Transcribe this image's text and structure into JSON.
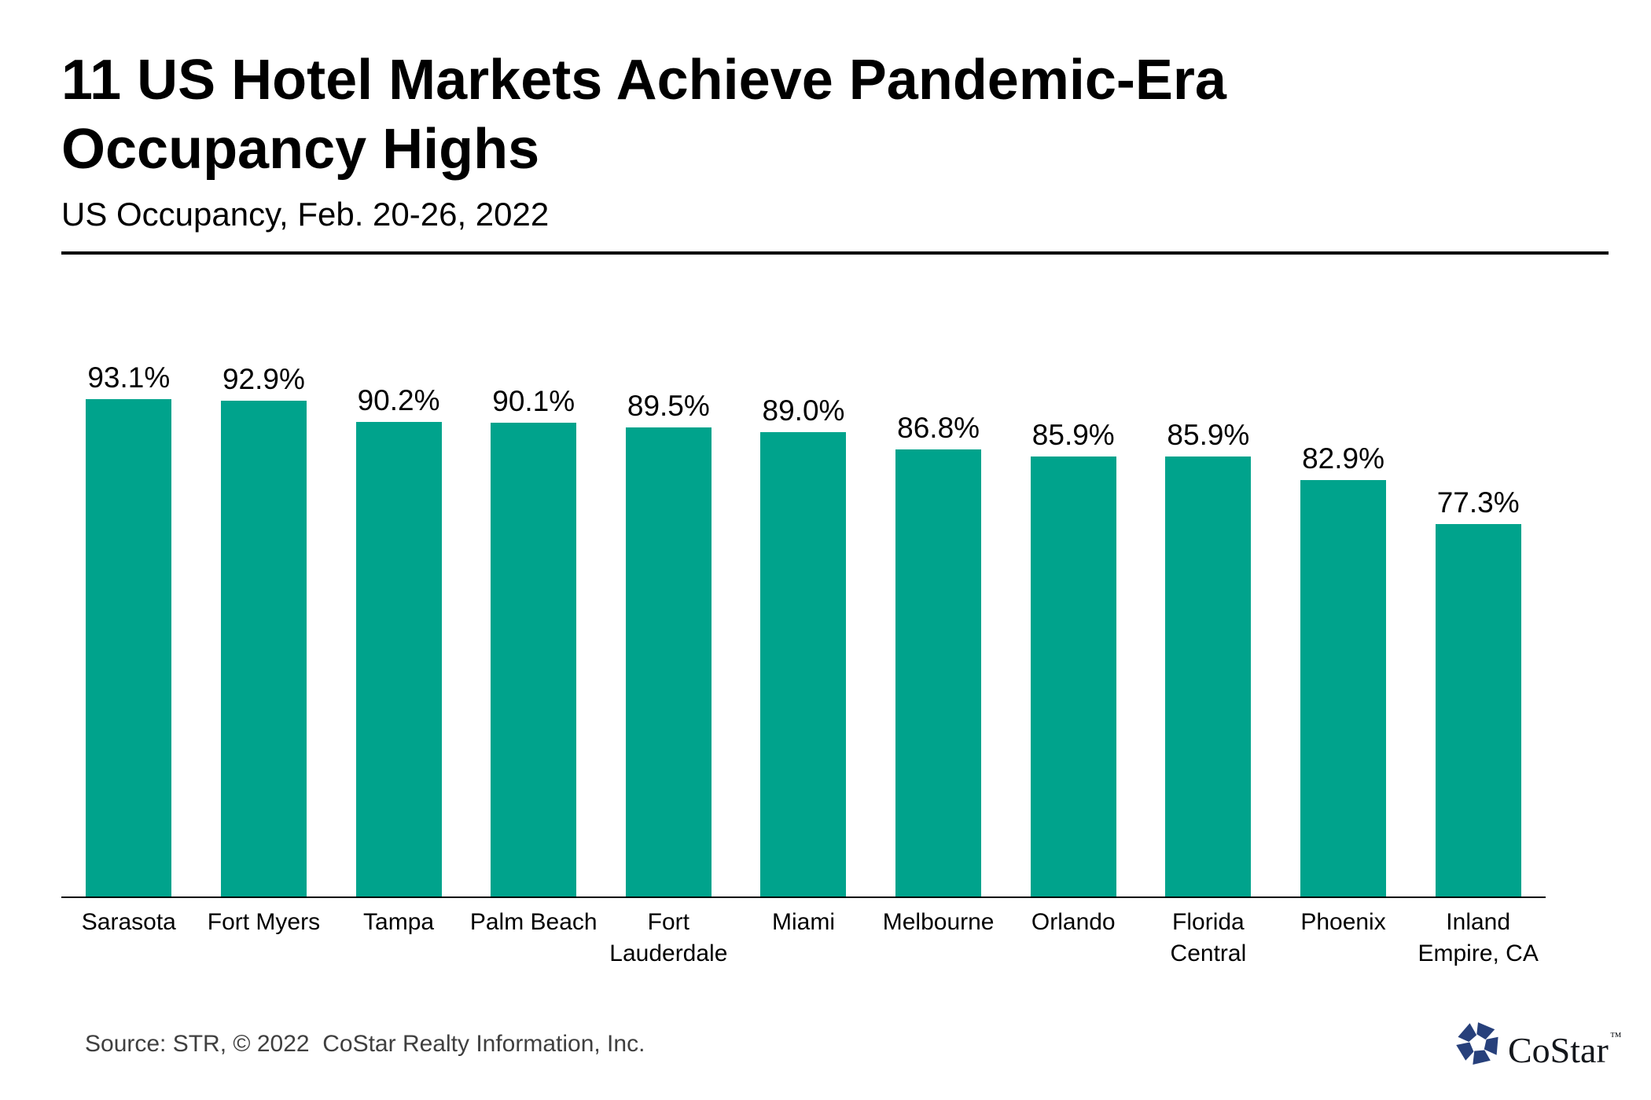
{
  "header": {
    "title": "11 US Hotel Markets Achieve Pandemic-Era Occupancy Highs",
    "subtitle": "US Occupancy, Feb. 20-26, 2022"
  },
  "chart_data": {
    "type": "bar",
    "title": "11 US Hotel Markets Achieve Pandemic-Era Occupancy Highs",
    "subtitle": "US Occupancy, Feb. 20-26, 2022",
    "categories": [
      "Sarasota",
      "Fort Myers",
      "Tampa",
      "Palm Beach",
      "Fort Lauderdale",
      "Miami",
      "Melbourne",
      "Orlando",
      "Florida Central",
      "Phoenix",
      "Inland Empire, CA"
    ],
    "values": [
      93.1,
      92.9,
      90.2,
      90.1,
      89.5,
      89.0,
      86.8,
      85.9,
      85.9,
      82.9,
      77.3
    ],
    "data_labels": [
      "93.1%",
      "92.9%",
      "90.2%",
      "90.1%",
      "89.5%",
      "89.0%",
      "86.8%",
      "85.9%",
      "85.9%",
      "82.9%",
      "77.3%"
    ],
    "unit": "%",
    "xlabel": "",
    "ylabel": "",
    "ylim": [
      30,
      100
    ],
    "y_axis_labels_shown": false,
    "grid": false,
    "legend": "none",
    "data_labels_shown": true,
    "bar_color": "#00A38C"
  },
  "footer": {
    "source": "Source: STR, © 2022  CoStar Realty Information, Inc.",
    "logo": {
      "icon": "costar-pinwheel-icon",
      "icon_color": "#27407B",
      "text": "CoStar",
      "trademark": "™"
    }
  }
}
